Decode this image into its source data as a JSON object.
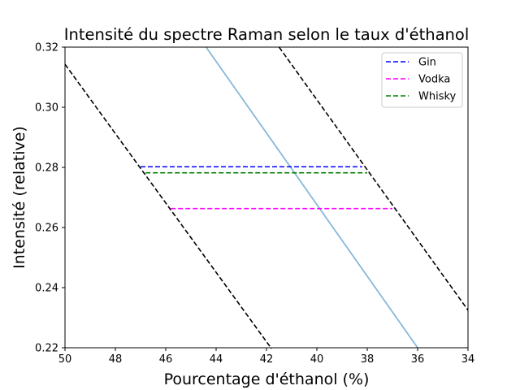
{
  "chart_data": {
    "type": "line",
    "title": "Intensité du spectre Raman selon le taux d'éthanol",
    "xlabel": "Pourcentage d'éthanol (%)",
    "ylabel": "Intensité (relative)",
    "xlim": [
      50,
      34
    ],
    "ylim": [
      0.22,
      0.32
    ],
    "x_inverted": true,
    "x_ticks": [
      50,
      48,
      46,
      44,
      42,
      40,
      38,
      36,
      34
    ],
    "y_ticks": [
      0.22,
      0.24,
      0.26,
      0.28,
      0.3,
      0.32
    ],
    "x_tick_labels": [
      "50",
      "48",
      "46",
      "44",
      "42",
      "40",
      "38",
      "36",
      "34"
    ],
    "y_tick_labels": [
      "0.22",
      "0.24",
      "0.26",
      "0.28",
      "0.30",
      "0.32"
    ],
    "grid": false,
    "legend_position": "top-right",
    "calibration_line": {
      "color": "#87b8d8",
      "style": "solid",
      "points": [
        [
          44.4,
          0.32
        ],
        [
          36.0,
          0.22
        ]
      ]
    },
    "confidence_bounds": [
      {
        "color": "#000000",
        "style": "dashed",
        "points": [
          [
            50.0,
            0.3143
          ],
          [
            41.8,
            0.2197
          ]
        ]
      },
      {
        "color": "#000000",
        "style": "dashed",
        "points": [
          [
            41.5,
            0.32
          ],
          [
            34.0,
            0.2325
          ]
        ]
      }
    ],
    "series": [
      {
        "name": "Gin",
        "color": "#0000ff",
        "style": "dashed",
        "y": 0.2802,
        "x_range": [
          47.0,
          38.2
        ]
      },
      {
        "name": "Vodka",
        "color": "#ff00ff",
        "style": "dashed",
        "y": 0.2663,
        "x_range": [
          45.8,
          37.0
        ]
      },
      {
        "name": "Whisky",
        "color": "#008000",
        "style": "dashed",
        "y": 0.2782,
        "x_range": [
          46.8,
          38.0
        ]
      }
    ]
  }
}
